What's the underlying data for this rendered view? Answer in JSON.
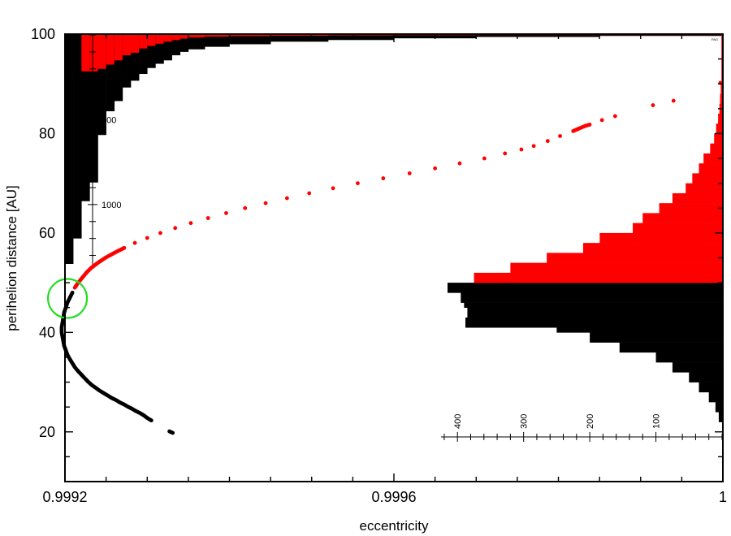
{
  "chart_data": {
    "type": "scatter",
    "xlabel": "eccentricity",
    "ylabel": "perihelion distance [AU]",
    "xlim": [
      0.9992,
      1.0
    ],
    "ylim": [
      10,
      100
    ],
    "x_ticks": [
      {
        "value": 0.9992,
        "label": "0.9992"
      },
      {
        "value": 0.9996,
        "label": "0.9996"
      },
      {
        "value": 1.0,
        "label": "1"
      }
    ],
    "y_ticks": [
      {
        "value": 20,
        "label": "20"
      },
      {
        "value": 40,
        "label": "40"
      },
      {
        "value": 60,
        "label": "60"
      },
      {
        "value": 80,
        "label": "80"
      },
      {
        "value": 100,
        "label": "100"
      }
    ],
    "corner_label": "PAG",
    "colors": {
      "inward": "#000000",
      "outward": "#ff0000",
      "marker": "#22dd22"
    },
    "series": [
      {
        "color": "#000000",
        "points": [
          [
            0.999331,
            19.8
          ],
          [
            0.999327,
            20.1
          ],
          [
            0.999305,
            22.3
          ],
          [
            0.9993,
            22.8
          ],
          [
            0.999296,
            23.3
          ],
          [
            0.999291,
            23.8
          ],
          [
            0.999286,
            24.2
          ],
          [
            0.999281,
            24.7
          ],
          [
            0.999276,
            25.1
          ],
          [
            0.999272,
            25.5
          ],
          [
            0.999267,
            25.9
          ],
          [
            0.999262,
            26.4
          ],
          [
            0.999257,
            26.8
          ],
          [
            0.999252,
            27.3
          ],
          [
            0.999247,
            27.8
          ],
          [
            0.999242,
            28.3
          ],
          [
            0.999237,
            28.9
          ],
          [
            0.999232,
            29.5
          ],
          [
            0.999228,
            30.1
          ],
          [
            0.999224,
            30.8
          ],
          [
            0.99922,
            31.5
          ],
          [
            0.999216,
            32.2
          ],
          [
            0.999212,
            33.0
          ],
          [
            0.999209,
            33.8
          ],
          [
            0.999206,
            34.6
          ],
          [
            0.999203,
            35.5
          ],
          [
            0.999201,
            36.4
          ],
          [
            0.999199,
            37.3
          ],
          [
            0.999198,
            38.2
          ],
          [
            0.999197,
            39.1
          ],
          [
            0.999196,
            40.0
          ],
          [
            0.999196,
            41.0
          ],
          [
            0.999197,
            42.0
          ],
          [
            0.999198,
            43.0
          ],
          [
            0.999199,
            44.0
          ],
          [
            0.999201,
            45.0
          ],
          [
            0.999203,
            46.0
          ],
          [
            0.999206,
            47.0
          ],
          [
            0.999209,
            48.0
          ]
        ]
      },
      {
        "color": "#ff0000",
        "points": [
          [
            0.999212,
            49.0
          ],
          [
            0.999216,
            50.0
          ],
          [
            0.999221,
            51.0
          ],
          [
            0.999226,
            52.0
          ],
          [
            0.999232,
            53.0
          ],
          [
            0.99924,
            54.0
          ],
          [
            0.999249,
            55.0
          ],
          [
            0.99926,
            56.0
          ],
          [
            0.999272,
            57.0
          ],
          [
            0.999285,
            58.0
          ],
          [
            0.9993,
            59.0
          ],
          [
            0.999316,
            60.0
          ],
          [
            0.999334,
            61.0
          ],
          [
            0.999353,
            62.0
          ],
          [
            0.999374,
            63.0
          ],
          [
            0.999396,
            64.0
          ],
          [
            0.999419,
            65.0
          ],
          [
            0.999444,
            66.0
          ],
          [
            0.99947,
            67.0
          ],
          [
            0.999497,
            68.0
          ],
          [
            0.999526,
            69.0
          ],
          [
            0.999556,
            70.0
          ],
          [
            0.999587,
            71.0
          ],
          [
            0.999619,
            72.0
          ],
          [
            0.99965,
            73.0
          ],
          [
            0.99968,
            74.0
          ],
          [
            0.99971,
            75.0
          ],
          [
            0.999735,
            76.0
          ],
          [
            0.999755,
            76.8
          ],
          [
            0.99977,
            77.5
          ],
          [
            0.999787,
            78.5
          ],
          [
            0.999802,
            79.5
          ],
          [
            0.999818,
            80.5
          ],
          [
            0.999825,
            81.0
          ],
          [
            0.999832,
            81.5
          ],
          [
            0.999838,
            81.8
          ],
          [
            0.999853,
            82.7
          ],
          [
            0.999869,
            83.5
          ],
          [
            0.999915,
            85.7
          ],
          [
            0.99994,
            86.6
          ],
          [
            0.999997,
            90.2
          ]
        ]
      }
    ],
    "marker_circle": {
      "x": 0.999207,
      "y": 47.0
    },
    "inset_left": {
      "description_values": "counts (histogram of x)",
      "x_edges": [
        0.9992,
        0.99921,
        0.99922,
        0.99923,
        0.99924,
        0.99925,
        0.99926,
        0.99927,
        0.99928,
        0.99929,
        0.9993,
        0.99931,
        0.99932,
        0.99933,
        0.99934,
        0.99935,
        0.99937,
        0.9994,
        0.99945,
        0.99952,
        0.9996,
        0.9997,
        0.99985,
        1.0
      ],
      "black": [
        1350,
        1200,
        980,
        870,
        590,
        450,
        390,
        310,
        270,
        230,
        195,
        170,
        150,
        120,
        100,
        85,
        70,
        55,
        40,
        30,
        20,
        12,
        6
      ],
      "red": [
        0,
        0,
        215,
        215,
        200,
        175,
        150,
        120,
        105,
        80,
        65,
        52,
        40,
        30,
        22,
        15,
        10,
        7,
        5,
        3,
        2,
        1,
        1
      ],
      "scale": {
        "ticks": [
          500,
          1000
        ],
        "max": 1350
      }
    },
    "inset_right": {
      "description_values": "counts (histogram of y)",
      "y_edges": [
        22,
        24,
        26,
        28,
        30,
        32,
        34,
        36,
        38,
        40,
        41,
        43,
        45,
        46,
        48,
        50,
        52,
        54,
        56,
        58,
        60,
        62,
        64,
        66,
        68,
        70,
        72,
        74,
        76,
        78,
        80,
        82,
        84,
        86,
        88,
        90,
        100
      ],
      "black": [
        5,
        10,
        20,
        35,
        50,
        75,
        100,
        155,
        200,
        250,
        388,
        385,
        390,
        395,
        415
      ],
      "red": [
        0,
        0,
        0,
        0,
        0,
        0,
        0,
        0,
        0,
        0,
        0,
        0,
        0,
        0,
        0,
        375,
        320,
        265,
        210,
        185,
        135,
        120,
        95,
        75,
        55,
        45,
        35,
        28,
        18,
        12,
        9,
        6,
        4,
        3,
        2,
        1
      ],
      "scale": {
        "ticks": [
          400,
          300,
          200,
          100
        ],
        "max": 415
      }
    }
  }
}
